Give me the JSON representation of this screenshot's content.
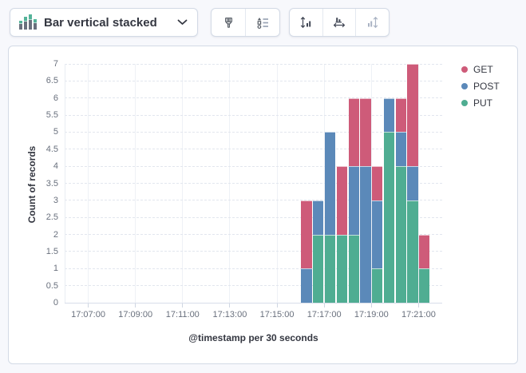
{
  "toolbar": {
    "chart_type_selector": {
      "label": "Bar vertical stacked"
    },
    "style_buttons": [
      {
        "name": "paintbrush"
      },
      {
        "name": "visualization-options"
      }
    ],
    "axis_buttons": [
      {
        "name": "left-axis-settings",
        "disabled": false
      },
      {
        "name": "bottom-axis-settings",
        "disabled": false
      },
      {
        "name": "right-axis-settings",
        "disabled": true
      }
    ]
  },
  "chart_data": {
    "type": "bar",
    "stacked": true,
    "orientation": "vertical",
    "xlabel": "@timestamp per 30 seconds",
    "ylabel": "Count of records",
    "x_domain": [
      "17:06:00",
      "17:22:00"
    ],
    "bucket_seconds": 30,
    "x_ticks": [
      "17:07:00",
      "17:09:00",
      "17:11:00",
      "17:13:00",
      "17:15:00",
      "17:17:00",
      "17:19:00",
      "17:21:00"
    ],
    "y_ticks": [
      "0",
      "0.5",
      "1",
      "1.5",
      "2",
      "2.5",
      "3",
      "3.5",
      "4",
      "4.5",
      "5",
      "5.5",
      "6",
      "6.5",
      "7"
    ],
    "ylim": [
      0,
      7
    ],
    "grid": {
      "horizontal": "dashed",
      "vertical": "solid"
    },
    "categories": [
      "17:16:00",
      "17:16:30",
      "17:17:00",
      "17:17:30",
      "17:18:00",
      "17:18:30",
      "17:19:00",
      "17:19:30",
      "17:20:00",
      "17:20:30",
      "17:21:00"
    ],
    "series": [
      {
        "name": "GET",
        "color": "#ce5b79",
        "values": [
          2,
          0,
          0,
          2,
          2,
          2,
          1,
          0,
          1,
          3,
          1
        ]
      },
      {
        "name": "POST",
        "color": "#5b89b9",
        "values": [
          1,
          1,
          3,
          0,
          2,
          4,
          2,
          1,
          1,
          1,
          0
        ]
      },
      {
        "name": "PUT",
        "color": "#4fad92",
        "values": [
          0,
          2,
          2,
          2,
          2,
          0,
          1,
          5,
          4,
          3,
          1
        ]
      }
    ],
    "stack_order_bottom_to_top": [
      "PUT",
      "POST",
      "GET"
    ],
    "legend": {
      "position": "right",
      "items": [
        "GET",
        "POST",
        "PUT"
      ]
    }
  },
  "colors": {
    "icon_green": "#54b399",
    "icon_gray": "#69707d",
    "disabled_icon": "#a9b2c3"
  }
}
